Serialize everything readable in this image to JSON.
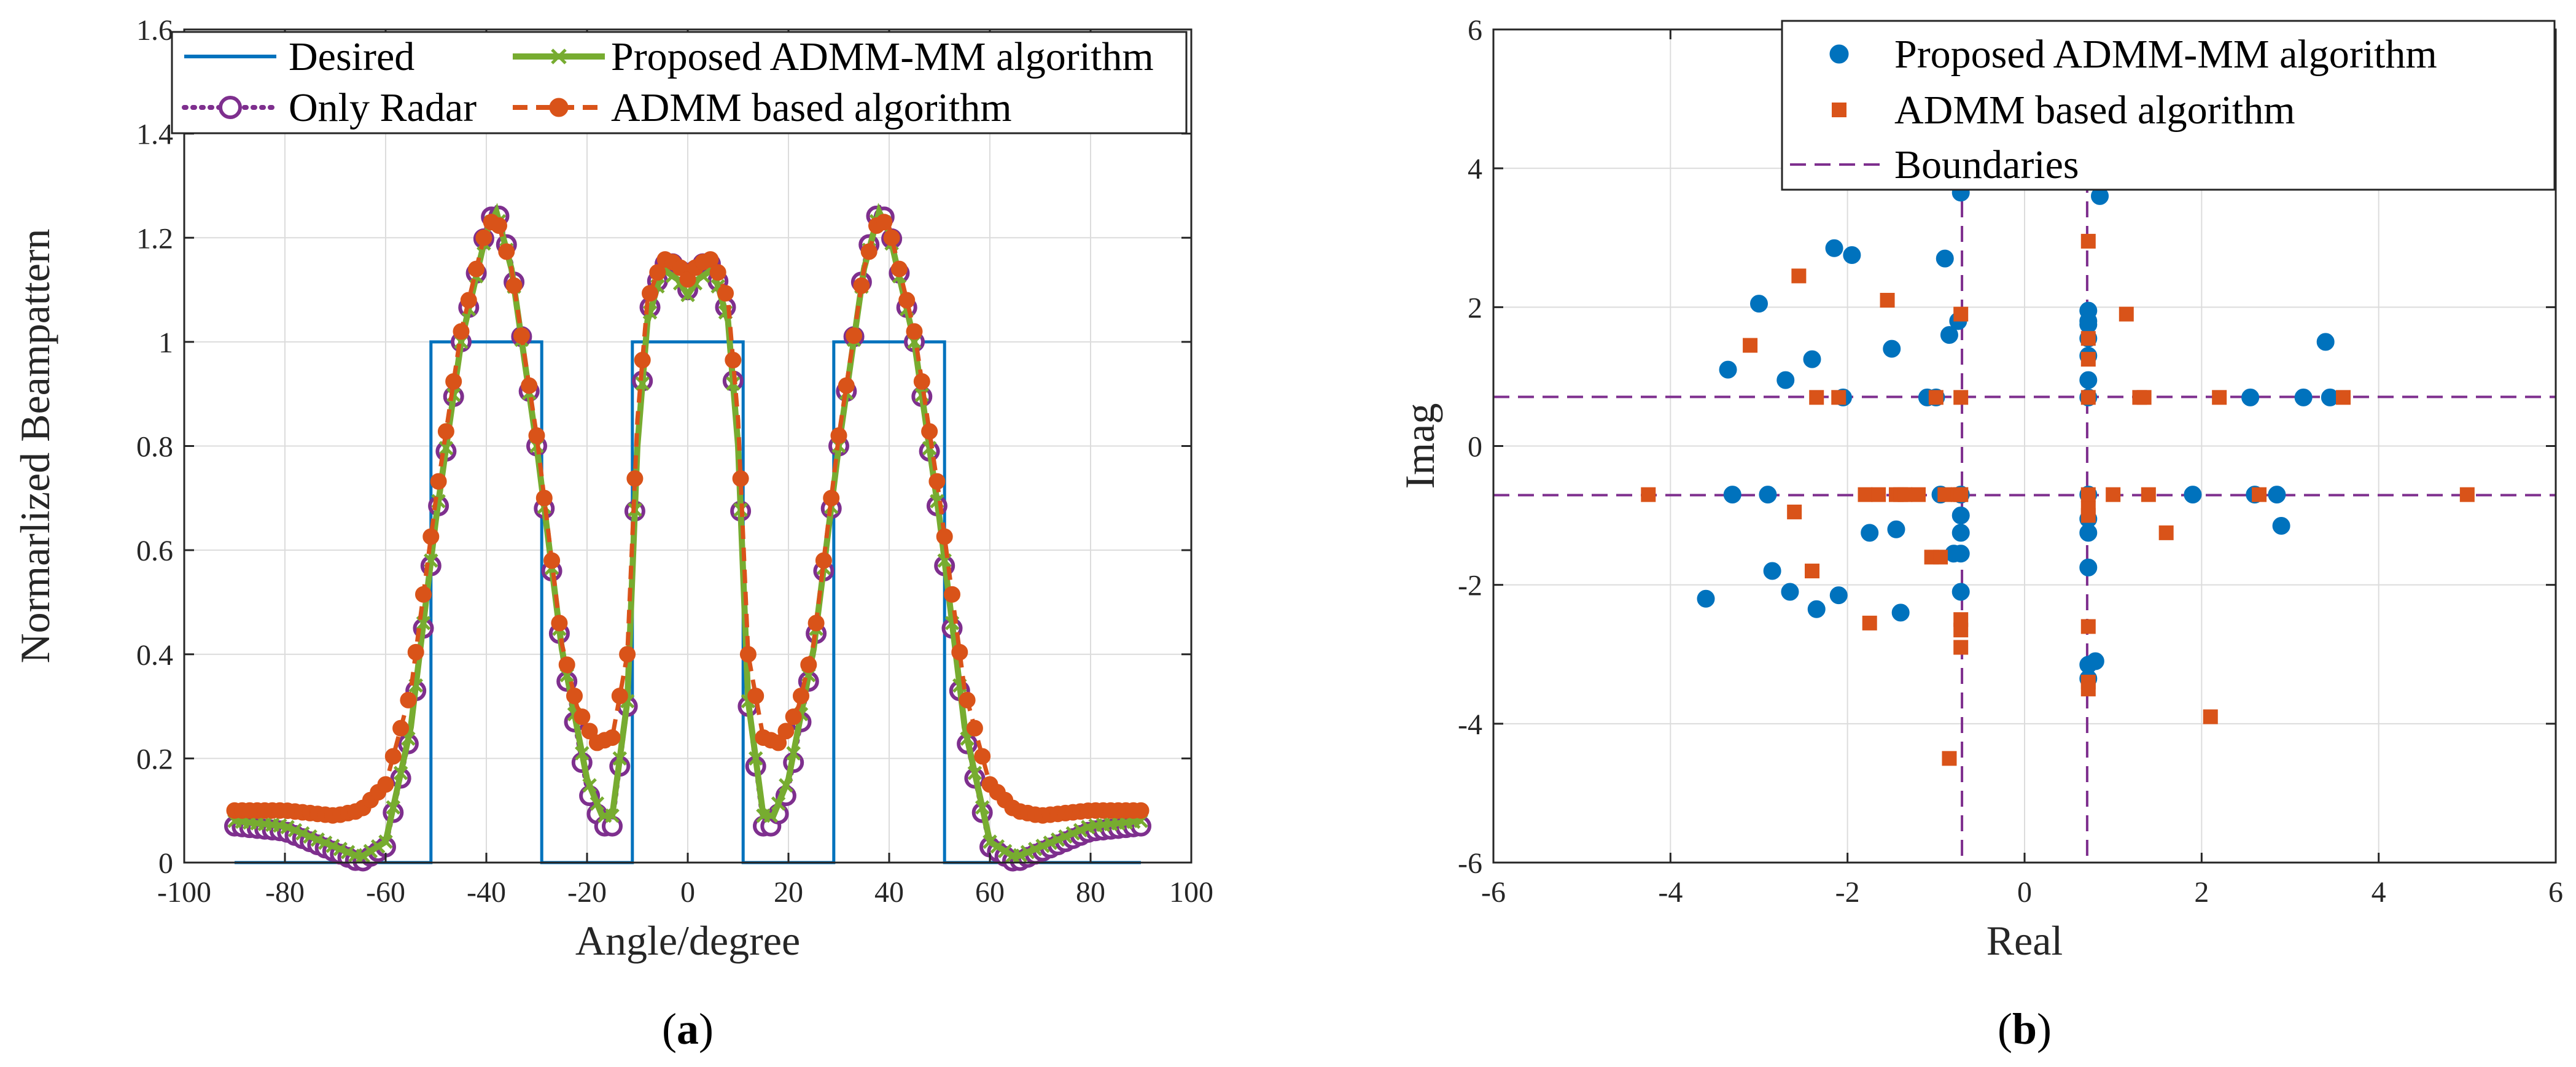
{
  "panels": [
    {
      "caption_open": "(",
      "caption_letter": "a",
      "caption_close": ")",
      "chart_data": {
        "type": "line",
        "title": "",
        "xlabel": "Angle/degree",
        "ylabel": "Normarlized Beampattern",
        "xlim": [
          -100,
          100
        ],
        "ylim": [
          0,
          1.6
        ],
        "xticks": [
          -100,
          -80,
          -60,
          -40,
          -20,
          0,
          20,
          40,
          60,
          80,
          100
        ],
        "yticks": [
          0,
          0.2,
          0.4,
          0.6,
          0.8,
          1,
          1.2,
          1.4,
          1.6
        ],
        "xtick_labels": [
          "-100",
          "-80",
          "-60",
          "-40",
          "-20",
          "0",
          "20",
          "40",
          "60",
          "80",
          "100"
        ],
        "ytick_labels": [
          "0",
          "0.2",
          "0.4",
          "0.6",
          "0.8",
          "1",
          "1.2",
          "1.4",
          "1.6"
        ],
        "grid": true,
        "legend_position": "top",
        "series": [
          {
            "name": "Desired",
            "color": "#0072BD",
            "style": "solid",
            "x": [
              -90,
              -51,
              -51,
              -29,
              -29,
              -11,
              -11,
              11,
              11,
              29,
              29,
              51,
              51,
              90
            ],
            "y": [
              0,
              0,
              1,
              1,
              0,
              0,
              1,
              1,
              0,
              0,
              1,
              1,
              0,
              0
            ]
          },
          {
            "name": "Only Radar",
            "color": "#7E2F8E",
            "style": "dotted",
            "marker": "circle-open",
            "x": [
              -90,
              -80,
              -70,
              -65,
              -60,
              -55,
              -50,
              -45,
              -40,
              -38,
              -35,
              -30,
              -25,
              -20,
              -17,
              -15,
              -12,
              -10,
              -8,
              -5,
              -2,
              0,
              2,
              5,
              8,
              10,
              12,
              15,
              17,
              20,
              25,
              30,
              35,
              38,
              40,
              45,
              50,
              55,
              60,
              65,
              70,
              80,
              90
            ],
            "y": [
              0.07,
              0.06,
              0.02,
              0.0,
              0.03,
              0.25,
              0.65,
              1.0,
              1.22,
              1.26,
              1.15,
              0.8,
              0.4,
              0.14,
              0.07,
              0.07,
              0.3,
              0.8,
              1.05,
              1.15,
              1.15,
              1.1,
              1.15,
              1.15,
              1.05,
              0.8,
              0.3,
              0.07,
              0.07,
              0.14,
              0.4,
              0.8,
              1.15,
              1.26,
              1.22,
              1.0,
              0.65,
              0.25,
              0.03,
              0.0,
              0.02,
              0.06,
              0.07
            ]
          },
          {
            "name": "Proposed ADMM-MM algorithm",
            "color": "#77AC30",
            "style": "solid",
            "marker": "x",
            "x": [
              -90,
              -80,
              -70,
              -65,
              -60,
              -55,
              -50,
              -45,
              -40,
              -38,
              -35,
              -30,
              -25,
              -20,
              -17,
              -15,
              -12,
              -10,
              -8,
              -5,
              -2,
              0,
              2,
              5,
              8,
              10,
              12,
              15,
              17,
              20,
              25,
              30,
              35,
              38,
              40,
              45,
              50,
              55,
              60,
              65,
              70,
              80,
              90
            ],
            "y": [
              0.08,
              0.07,
              0.03,
              0.01,
              0.04,
              0.26,
              0.66,
              1.0,
              1.21,
              1.25,
              1.14,
              0.8,
              0.41,
              0.16,
              0.09,
              0.09,
              0.31,
              0.8,
              1.04,
              1.14,
              1.12,
              1.09,
              1.12,
              1.14,
              1.04,
              0.8,
              0.31,
              0.09,
              0.09,
              0.16,
              0.41,
              0.8,
              1.14,
              1.25,
              1.21,
              1.0,
              0.66,
              0.26,
              0.04,
              0.01,
              0.03,
              0.07,
              0.08
            ]
          },
          {
            "name": "ADMM based algorithm",
            "color": "#D95319",
            "style": "dashed",
            "marker": "circle-filled",
            "x": [
              -90,
              -80,
              -70,
              -65,
              -60,
              -55,
              -50,
              -45,
              -40,
              -38,
              -35,
              -30,
              -25,
              -22,
              -20,
              -18,
              -15,
              -12,
              -10,
              -8,
              -5,
              -2,
              0,
              2,
              5,
              8,
              10,
              12,
              15,
              18,
              20,
              22,
              25,
              30,
              35,
              38,
              40,
              45,
              50,
              55,
              60,
              65,
              70,
              80,
              90
            ],
            "y": [
              0.1,
              0.1,
              0.09,
              0.1,
              0.15,
              0.33,
              0.7,
              1.02,
              1.22,
              1.24,
              1.14,
              0.82,
              0.42,
              0.3,
              0.26,
              0.23,
              0.24,
              0.4,
              0.85,
              1.08,
              1.16,
              1.15,
              1.12,
              1.15,
              1.16,
              1.08,
              0.85,
              0.4,
              0.24,
              0.23,
              0.26,
              0.3,
              0.42,
              0.82,
              1.14,
              1.24,
              1.22,
              1.02,
              0.7,
              0.33,
              0.15,
              0.1,
              0.09,
              0.1,
              0.1
            ]
          }
        ]
      }
    },
    {
      "caption_open": "(",
      "caption_letter": "b",
      "caption_close": ")",
      "chart_data": {
        "type": "scatter",
        "title": "",
        "xlabel": "Real",
        "ylabel": "Imag",
        "xlim": [
          -6,
          6
        ],
        "ylim": [
          -6,
          6
        ],
        "xticks": [
          -6,
          -4,
          -2,
          0,
          2,
          4,
          6
        ],
        "yticks": [
          -6,
          -4,
          -2,
          0,
          2,
          4,
          6
        ],
        "xtick_labels": [
          "-6",
          "-4",
          "-2",
          "0",
          "2",
          "4",
          "6"
        ],
        "ytick_labels": [
          "-6",
          "-4",
          "-2",
          "0",
          "2",
          "4",
          "6"
        ],
        "grid": true,
        "legend_position": "top-right",
        "boundaries": {
          "name": "Boundaries",
          "color": "#7E2F8E",
          "style": "dashed",
          "x": [
            -0.707,
            0.707
          ],
          "y": [
            -0.707,
            0.707
          ]
        },
        "series": [
          {
            "name": "Proposed ADMM-MM algorithm",
            "color": "#0072BD",
            "marker": "circle",
            "x": [
              -3.6,
              -3.35,
              -3.3,
              -3.0,
              -2.9,
              -2.85,
              -2.7,
              -2.65,
              -2.4,
              -2.35,
              -2.15,
              -2.1,
              -2.05,
              -1.95,
              -1.75,
              -1.5,
              -1.45,
              -1.4,
              -1.1,
              -1.0,
              -0.95,
              -0.9,
              -0.85,
              -0.8,
              -0.75,
              -0.72,
              -0.72,
              -0.72,
              -0.72,
              -0.72,
              -0.72,
              0.72,
              0.72,
              0.72,
              0.72,
              0.72,
              0.72,
              0.72,
              0.72,
              0.72,
              0.72,
              0.72,
              0.72,
              0.8,
              1.9,
              2.55,
              2.6,
              2.85,
              2.9,
              3.15,
              3.4,
              3.45,
              0.72,
              0.85
            ],
            "y": [
              -2.2,
              1.1,
              -0.7,
              2.05,
              -0.7,
              -1.8,
              0.95,
              -2.1,
              1.25,
              -2.35,
              2.85,
              -2.15,
              0.7,
              2.75,
              -1.25,
              1.4,
              -1.2,
              -2.4,
              0.7,
              0.7,
              -0.7,
              2.7,
              1.6,
              -1.55,
              1.8,
              -1.0,
              -1.25,
              -2.1,
              -0.7,
              -1.55,
              3.65,
              1.95,
              1.75,
              1.55,
              1.3,
              0.95,
              0.7,
              -0.7,
              -1.25,
              -1.75,
              -1.05,
              -3.15,
              -3.35,
              -3.1,
              -0.7,
              0.7,
              -0.7,
              -0.7,
              -1.15,
              0.7,
              1.5,
              0.7,
              1.8,
              3.6
            ]
          },
          {
            "name": "ADMM based algorithm",
            "color": "#D95319",
            "marker": "square",
            "x": [
              -4.25,
              -3.1,
              -2.6,
              -2.55,
              -2.4,
              -2.35,
              -1.55,
              -1.75,
              -1.45,
              -1.4,
              -1.35,
              -1.2,
              -1.05,
              -1.0,
              -0.95,
              -0.9,
              -0.85,
              -0.75,
              -0.72,
              -0.72,
              -0.72,
              -0.72,
              -0.72,
              -0.72,
              -0.72,
              0.72,
              0.72,
              0.72,
              0.72,
              0.72,
              0.72,
              0.72,
              0.72,
              0.72,
              0.72,
              1.0,
              1.15,
              1.3,
              1.35,
              1.4,
              1.6,
              2.1,
              2.2,
              2.65,
              3.6,
              5.0,
              -1.8,
              -1.65,
              -2.1
            ],
            "y": [
              -0.7,
              1.45,
              -0.95,
              2.45,
              -1.8,
              0.7,
              2.1,
              -2.55,
              -0.7,
              -0.7,
              -0.7,
              -0.7,
              -1.6,
              0.7,
              -1.6,
              -0.7,
              -4.5,
              -0.7,
              1.9,
              -2.5,
              -2.65,
              -2.9,
              0.7,
              -0.7,
              -0.7,
              2.95,
              1.55,
              1.25,
              0.7,
              -0.7,
              -2.6,
              -3.4,
              -3.5,
              -1.0,
              -0.9,
              -0.7,
              1.9,
              0.7,
              0.7,
              -0.7,
              -1.25,
              -3.9,
              0.7,
              -0.7,
              0.7,
              -0.7,
              -0.7,
              -0.7,
              0.7
            ]
          }
        ]
      }
    }
  ]
}
